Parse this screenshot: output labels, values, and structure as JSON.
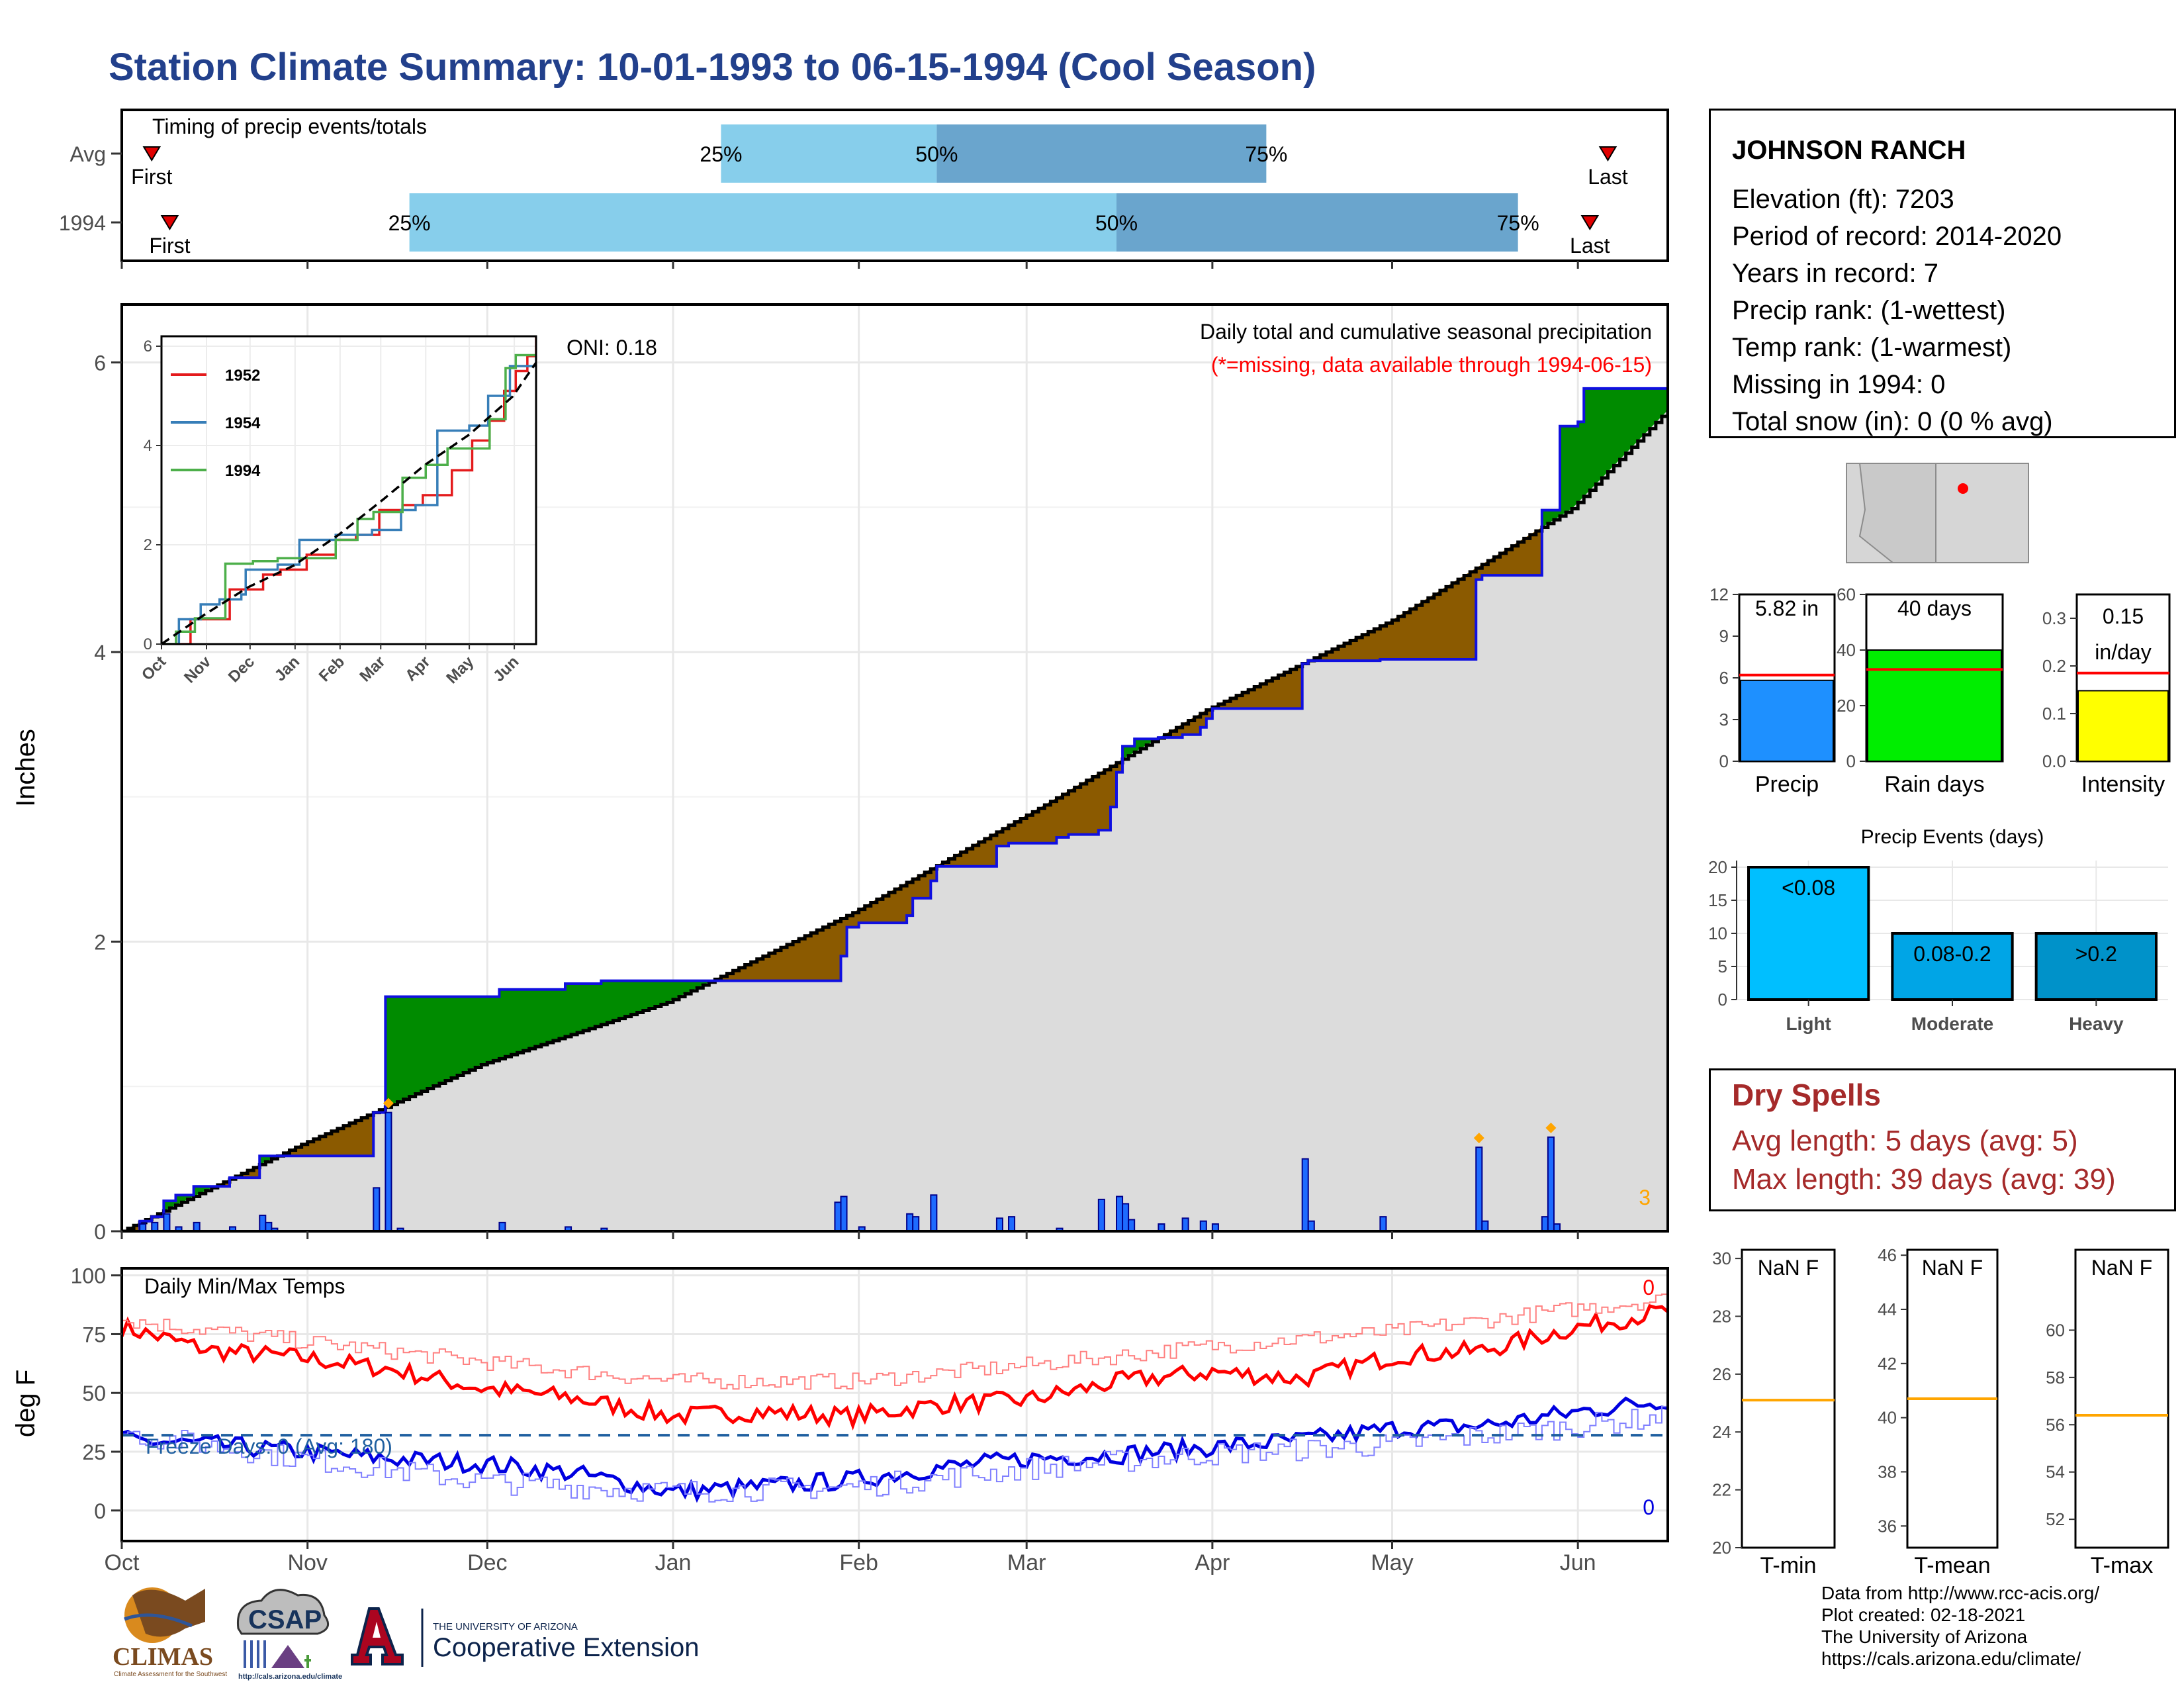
{
  "title": "Station Climate Summary: 10-01-1993 to 06-15-1994 (Cool Season)",
  "timing": {
    "label": "Timing of precip events/totals",
    "rows": [
      {
        "name": "Avg",
        "first_day": 5,
        "last_day": 248,
        "p25": 100,
        "p50": 136,
        "p75": 191
      },
      {
        "name": "1994",
        "first_day": 8,
        "last_day": 245,
        "p25": 48,
        "p50": 166,
        "p75": 233
      }
    ],
    "first_label": "First",
    "last_label": "Last",
    "p_labels": [
      "25%",
      "50%",
      "75%"
    ]
  },
  "precip_panel": {
    "ylabel": "Inches",
    "title": "Daily total and cumulative seasonal precipitation",
    "missing_note": "(*=missing, data available through 1994-06-15)",
    "oni": "ONI: 0.18",
    "corner_count": "3",
    "y_ticks": [
      0,
      2,
      4,
      6
    ]
  },
  "temp_panel": {
    "ylabel": "deg F",
    "title": "Daily Min/Max Temps",
    "freeze_label": "Freeze Days: 0 (Avg: 180)",
    "count_hi": "0",
    "count_lo": "0",
    "y_ticks": [
      0,
      25,
      50,
      75,
      100
    ]
  },
  "months": [
    "Oct",
    "Nov",
    "Dec",
    "Jan",
    "Feb",
    "Mar",
    "Apr",
    "May",
    "Jun"
  ],
  "inset": {
    "legend": [
      "1952",
      "1954",
      "1994"
    ],
    "y_ticks": [
      0,
      2,
      4,
      6
    ],
    "months": [
      "Oct",
      "Nov",
      "Dec",
      "Jan",
      "Feb",
      "Mar",
      "Apr",
      "May",
      "Jun"
    ]
  },
  "station": {
    "name": "JOHNSON RANCH",
    "lines": [
      "Elevation (ft): 7203",
      "Period of record: 2014-2020",
      "Years in record: 7",
      "Precip rank:  (1-wettest)",
      "Temp rank:  (1-warmest)",
      "Missing in 1994: 0",
      "Total snow (in): 0 (0 % avg)"
    ]
  },
  "mini_bars": [
    {
      "label": "Precip",
      "value_text": "5.82 in",
      "value": 5.82,
      "avg": 6.2,
      "ymax": 12,
      "ticks": [
        0,
        3,
        6,
        9,
        12
      ],
      "color": "#1e90ff"
    },
    {
      "label": "Rain days",
      "value_text": "40 days",
      "value": 40,
      "avg": 33,
      "ymax": 60,
      "ticks": [
        0,
        20,
        40,
        60
      ],
      "color": "#00ee00"
    },
    {
      "label": "Intensity",
      "value_text": "0.15 in/day",
      "value_line1": "0.15",
      "value_line2": "in/day",
      "value": 0.148,
      "avg": 0.185,
      "ymax": 0.35,
      "ticks": [
        "0.0",
        "0.1",
        "0.2",
        "0.3"
      ],
      "color": "#ffff00"
    }
  ],
  "events": {
    "title": "Precip Events (days)",
    "categories": [
      "Light",
      "Moderate",
      "Heavy"
    ],
    "labels": [
      "<0.08",
      "0.08-0.2",
      ">0.2"
    ],
    "values": [
      20,
      10,
      10
    ],
    "ticks": [
      0,
      5,
      10,
      15,
      20
    ],
    "colors": [
      "#00bfff",
      "#00a5e6",
      "#0092c9"
    ]
  },
  "dry_spells": {
    "title": "Dry Spells",
    "avg": "Avg length: 5 days (avg: 5)",
    "max": "Max length: 39 days (avg: 39)"
  },
  "temp_boxes": [
    {
      "label": "T-min",
      "value_text": "NaN F",
      "ticks": [
        20,
        22,
        24,
        26,
        28,
        30
      ],
      "ymin": 20,
      "ymax": 30.3,
      "avg": 25.1
    },
    {
      "label": "T-mean",
      "value_text": "NaN F",
      "ticks": [
        36,
        38,
        40,
        42,
        44,
        46
      ],
      "ymin": 35.2,
      "ymax": 46.2,
      "avg": 40.7
    },
    {
      "label": "T-max",
      "value_text": "NaN F",
      "ticks": [
        52,
        54,
        56,
        58,
        60
      ],
      "ymin": 50.8,
      "ymax": 63.4,
      "avg": 56.4
    }
  ],
  "credits": [
    "Data from http://www.rcc-acis.org/",
    "Plot created: 02-18-2021",
    "The University of Arizona",
    "https://cals.arizona.edu/climate/"
  ],
  "logos": {
    "climas": "CLIMAS",
    "climas_sub": "Climate Assessment for the Southwest",
    "csap": "CSAP",
    "csap_url": "http://cals.arizona.edu/climate",
    "ua_small": "THE UNIVERSITY OF ARIZONA",
    "ua_big": "Cooperative Extension"
  },
  "chart_data": [
    {
      "type": "area",
      "name": "cumulative precipitation",
      "title": "Daily total and cumulative seasonal precipitation",
      "ylabel": "Inches",
      "ylim": [
        0,
        6.4
      ],
      "x_unit": "days since Oct 1",
      "avg_cumulative": [
        [
          0,
          0
        ],
        [
          30,
          0.6
        ],
        [
          60,
          1.15
        ],
        [
          91,
          1.58
        ],
        [
          122,
          2.2
        ],
        [
          153,
          2.92
        ],
        [
          181,
          3.6
        ],
        [
          212,
          4.22
        ],
        [
          242,
          4.99
        ],
        [
          258,
          5.67
        ]
      ],
      "year_cumulative": [
        [
          0,
          0
        ],
        [
          3,
          0.07
        ],
        [
          5,
          0.1
        ],
        [
          7,
          0.21
        ],
        [
          9,
          0.25
        ],
        [
          12,
          0.31
        ],
        [
          17,
          0.31
        ],
        [
          18,
          0.37
        ],
        [
          22,
          0.37
        ],
        [
          23,
          0.52
        ],
        [
          40,
          0.52
        ],
        [
          42,
          0.82
        ],
        [
          44,
          1.62
        ],
        [
          61,
          1.62
        ],
        [
          63,
          1.67
        ],
        [
          73,
          1.67
        ],
        [
          74,
          1.71
        ],
        [
          79,
          1.71
        ],
        [
          80,
          1.73
        ],
        [
          119,
          1.73
        ],
        [
          120,
          1.9
        ],
        [
          121,
          2.1
        ],
        [
          123,
          2.13
        ],
        [
          129,
          2.13
        ],
        [
          131,
          2.18
        ],
        [
          132,
          2.3
        ],
        [
          135,
          2.42
        ],
        [
          136,
          2.52
        ],
        [
          145,
          2.52
        ],
        [
          146,
          2.66
        ],
        [
          148,
          2.68
        ],
        [
          155,
          2.68
        ],
        [
          156,
          2.72
        ],
        [
          158,
          2.74
        ],
        [
          163,
          2.77
        ],
        [
          165,
          2.93
        ],
        [
          166,
          3.17
        ],
        [
          167,
          3.35
        ],
        [
          169,
          3.4
        ],
        [
          173,
          3.41
        ],
        [
          177,
          3.43
        ],
        [
          180,
          3.48
        ],
        [
          181,
          3.54
        ],
        [
          182,
          3.61
        ],
        [
          196,
          3.61
        ],
        [
          197,
          3.92
        ],
        [
          198,
          3.94
        ],
        [
          210,
          3.95
        ],
        [
          225,
          3.95
        ],
        [
          226,
          4.5
        ],
        [
          227,
          4.53
        ],
        [
          236,
          4.53
        ],
        [
          237,
          4.98
        ],
        [
          240,
          5.56
        ],
        [
          243,
          5.59
        ],
        [
          244,
          5.82
        ],
        [
          258,
          5.82
        ]
      ],
      "daily_bars": [
        [
          3,
          0.05
        ],
        [
          5,
          0.06
        ],
        [
          7,
          0.12
        ],
        [
          9,
          0.03
        ],
        [
          12,
          0.06
        ],
        [
          18,
          0.03
        ],
        [
          23,
          0.11
        ],
        [
          24,
          0.06
        ],
        [
          25,
          0.02
        ],
        [
          42,
          0.3
        ],
        [
          44,
          0.82
        ],
        [
          46,
          0.02
        ],
        [
          63,
          0.06
        ],
        [
          74,
          0.03
        ],
        [
          80,
          0.02
        ],
        [
          119,
          0.2
        ],
        [
          120,
          0.24
        ],
        [
          123,
          0.03
        ],
        [
          131,
          0.12
        ],
        [
          132,
          0.1
        ],
        [
          135,
          0.25
        ],
        [
          146,
          0.09
        ],
        [
          148,
          0.1
        ],
        [
          156,
          0.02
        ],
        [
          163,
          0.22
        ],
        [
          166,
          0.24
        ],
        [
          167,
          0.19
        ],
        [
          168,
          0.08
        ],
        [
          173,
          0.05
        ],
        [
          177,
          0.09
        ],
        [
          180,
          0.07
        ],
        [
          182,
          0.05
        ],
        [
          197,
          0.5
        ],
        [
          198,
          0.07
        ],
        [
          210,
          0.1
        ],
        [
          226,
          0.58
        ],
        [
          227,
          0.07
        ],
        [
          237,
          0.1
        ],
        [
          238,
          0.65
        ],
        [
          239,
          0.05
        ]
      ]
    },
    {
      "type": "line",
      "name": "daily min/max temps",
      "title": "Daily Min/Max Temps",
      "ylabel": "deg F",
      "ylim": [
        -13,
        103
      ],
      "freeze_line": 32,
      "series": [
        {
          "name": "Tmax",
          "x": [
            0,
            15,
            30,
            45,
            60,
            75,
            92,
            106,
            122,
            136,
            151,
            167,
            182,
            197,
            213,
            227,
            243,
            258
          ],
          "values": [
            78,
            68,
            65,
            60,
            52,
            48,
            40,
            42,
            40,
            45,
            47,
            55,
            59,
            56,
            66,
            68,
            78,
            85
          ]
        },
        {
          "name": "Tmin",
          "x": [
            0,
            15,
            30,
            45,
            60,
            75,
            92,
            106,
            122,
            136,
            151,
            167,
            182,
            197,
            213,
            227,
            243,
            258
          ],
          "values": [
            30,
            28,
            25,
            22,
            20,
            16,
            8,
            10,
            13,
            18,
            22,
            24,
            27,
            30,
            35,
            36,
            42,
            47
          ]
        },
        {
          "name": "Tmax avg",
          "x": [
            0,
            30,
            61,
            92,
            122,
            152,
            182,
            212,
            243,
            258
          ],
          "values": [
            81,
            72,
            63,
            55,
            55,
            62,
            70,
            76,
            86,
            90
          ]
        },
        {
          "name": "Tmin avg",
          "x": [
            0,
            30,
            61,
            92,
            122,
            152,
            182,
            212,
            243,
            258
          ],
          "values": [
            33,
            22,
            12,
            8,
            10,
            18,
            24,
            28,
            36,
            40
          ]
        }
      ]
    },
    {
      "type": "line",
      "name": "inset cumulative",
      "ylim": [
        0,
        6.2
      ],
      "series": [
        {
          "name": "1952",
          "x": [
            0,
            10,
            20,
            36,
            47,
            52,
            70,
            82,
            100,
            120,
            134,
            150,
            166,
            180,
            185,
            200,
            214,
            226,
            236,
            244,
            252,
            258
          ],
          "values": [
            0,
            0,
            0.5,
            0.5,
            1.1,
            1.1,
            1.4,
            1.5,
            1.8,
            2.1,
            2.2,
            2.7,
            2.8,
            3.0,
            3.0,
            3.5,
            4.1,
            4.5,
            5.1,
            5.5,
            5.8,
            6.3
          ]
        },
        {
          "name": "1954",
          "x": [
            0,
            12,
            27,
            40,
            55,
            58,
            80,
            95,
            120,
            145,
            165,
            175,
            190,
            212,
            225,
            240,
            258
          ],
          "values": [
            0,
            0.5,
            0.8,
            0.9,
            1.0,
            1.5,
            1.6,
            2.1,
            2.2,
            2.3,
            2.7,
            2.8,
            4.3,
            4.4,
            5.0,
            5.6,
            5.8
          ]
        },
        {
          "name": "1994",
          "x": [
            0,
            10,
            23,
            44,
            63,
            80,
            120,
            135,
            146,
            166,
            182,
            197,
            226,
            237,
            244,
            258
          ],
          "values": [
            0,
            0.25,
            0.52,
            1.62,
            1.67,
            1.73,
            2.1,
            2.52,
            2.66,
            3.35,
            3.61,
            3.94,
            4.53,
            5.56,
            5.82,
            5.82
          ]
        },
        {
          "name": "avg",
          "x": [
            0,
            30,
            60,
            91,
            122,
            153,
            181,
            212,
            242,
            258
          ],
          "values": [
            0,
            0.6,
            1.15,
            1.58,
            2.2,
            2.92,
            3.6,
            4.22,
            4.99,
            5.67
          ]
        }
      ]
    }
  ]
}
